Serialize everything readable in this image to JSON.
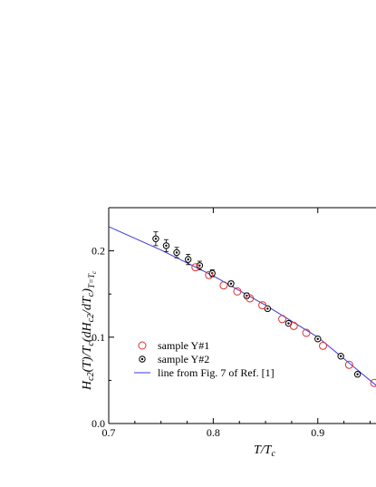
{
  "chart_data": {
    "type": "scatter",
    "xlabel": "T/T",
    "xlabel_sub": "c",
    "ylabel_parts": [
      "H",
      "c2",
      "(T)/T",
      "c",
      "(dH",
      "c2",
      "/dT",
      "c",
      ")",
      "T=T",
      "c"
    ],
    "xlim": [
      0.7,
      0.96
    ],
    "ylim": [
      0.0,
      0.25
    ],
    "xticks": [
      "0.7",
      "0.8",
      "0.9"
    ],
    "yticks": [
      "0.0",
      "0.1",
      "0.2"
    ],
    "x_tick_values": [
      0.7,
      0.8,
      0.9
    ],
    "y_tick_values": [
      0.0,
      0.1,
      0.2
    ],
    "grid": false,
    "legend_position": "lower-left",
    "colors": {
      "sample1": "#e03030",
      "sample2": "#000000",
      "line": "#3a3ad8"
    },
    "series": [
      {
        "name": "sample Y#1",
        "marker": "open-circle",
        "x": [
          0.783,
          0.796,
          0.81,
          0.823,
          0.835,
          0.847,
          0.866,
          0.877,
          0.889,
          0.905,
          0.93,
          0.954
        ],
        "y": [
          0.181,
          0.172,
          0.16,
          0.153,
          0.145,
          0.137,
          0.121,
          0.113,
          0.105,
          0.09,
          0.068,
          0.047
        ]
      },
      {
        "name": "sample Y#2",
        "marker": "dotted-circle",
        "x": [
          0.745,
          0.755,
          0.765,
          0.776,
          0.787,
          0.799,
          0.817,
          0.832,
          0.852,
          0.872,
          0.9,
          0.922,
          0.938
        ],
        "y": [
          0.214,
          0.206,
          0.198,
          0.19,
          0.183,
          0.174,
          0.162,
          0.148,
          0.133,
          0.116,
          0.098,
          0.078,
          0.057
        ],
        "yerr": [
          0.008,
          0.007,
          0.006,
          0.006,
          0.005,
          0.004,
          0.003,
          0.003,
          0.002,
          0.002,
          0.002,
          0.002,
          0.002
        ]
      },
      {
        "name": "line from Fig. 7 of Ref. [1]",
        "marker": "line",
        "x": [
          0.7,
          0.75,
          0.8,
          0.85,
          0.9,
          0.96
        ],
        "y": [
          0.228,
          0.201,
          0.171,
          0.137,
          0.1,
          0.04
        ]
      }
    ]
  }
}
